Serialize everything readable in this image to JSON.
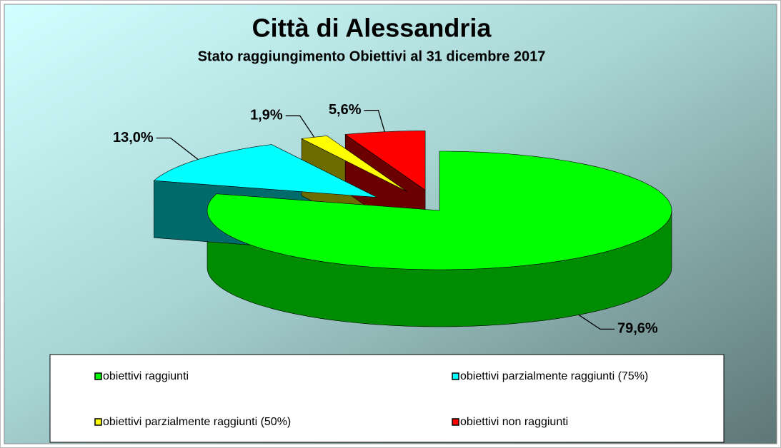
{
  "chart_data": {
    "type": "pie3d",
    "title": "Città di Alessandria",
    "subtitle": "Stato raggiungimento Obiettivi al 31 dicembre 2017",
    "categories": [
      "obiettivi raggiunti",
      "obiettivi parzialmente raggiunti (75%)",
      "obiettivi parzialmente raggiunti (50%)",
      "obiettivi non raggiunti"
    ],
    "values": [
      79.6,
      13.0,
      1.9,
      5.6
    ],
    "value_labels": [
      "79,6%",
      "13,0%",
      "1,9%",
      "5,6%"
    ],
    "colors": [
      "#00ff00",
      "#00ffff",
      "#ffff00",
      "#ff0000"
    ],
    "legend": "bottom"
  }
}
